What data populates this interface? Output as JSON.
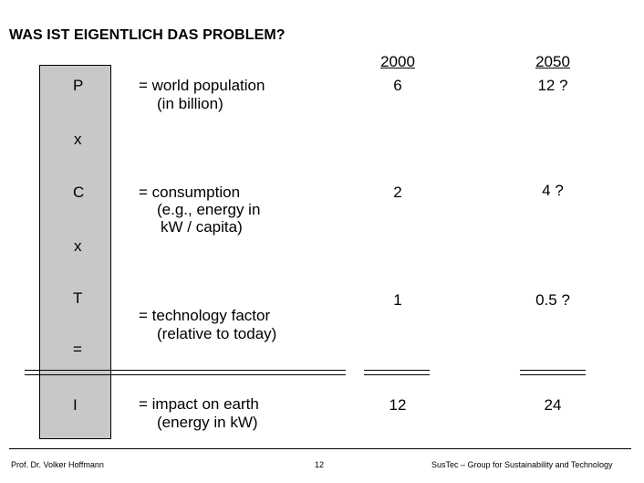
{
  "title": "WAS IST EIGENTLICH DAS PROBLEM?",
  "columns": {
    "y2000": "2000",
    "y2050": "2050"
  },
  "rows": {
    "p": {
      "var": "P",
      "line1": "= world population",
      "line2": "(in billion)",
      "v2000": "6",
      "v2050": "12 ?"
    },
    "c": {
      "var": "C",
      "line1": "= consumption",
      "line2": "(e.g., energy in",
      "line3": "kW / capita)",
      "v2000": "2",
      "v2050": "4 ?"
    },
    "t": {
      "var": "T",
      "line1": "= technology factor",
      "line2": "(relative to today)",
      "v2000": "1",
      "v2050": "0.5 ?"
    },
    "i": {
      "var": "I",
      "line1": "= impact on earth",
      "line2": "(energy in kW)",
      "v2000": "12",
      "v2050": "24"
    }
  },
  "operators": {
    "times1": "x",
    "times2": "x",
    "equals": "="
  },
  "footer": {
    "author": "Prof. Dr. Volker Hoffmann",
    "page": "12",
    "org": "SusTec – Group for Sustainability and Technology"
  }
}
